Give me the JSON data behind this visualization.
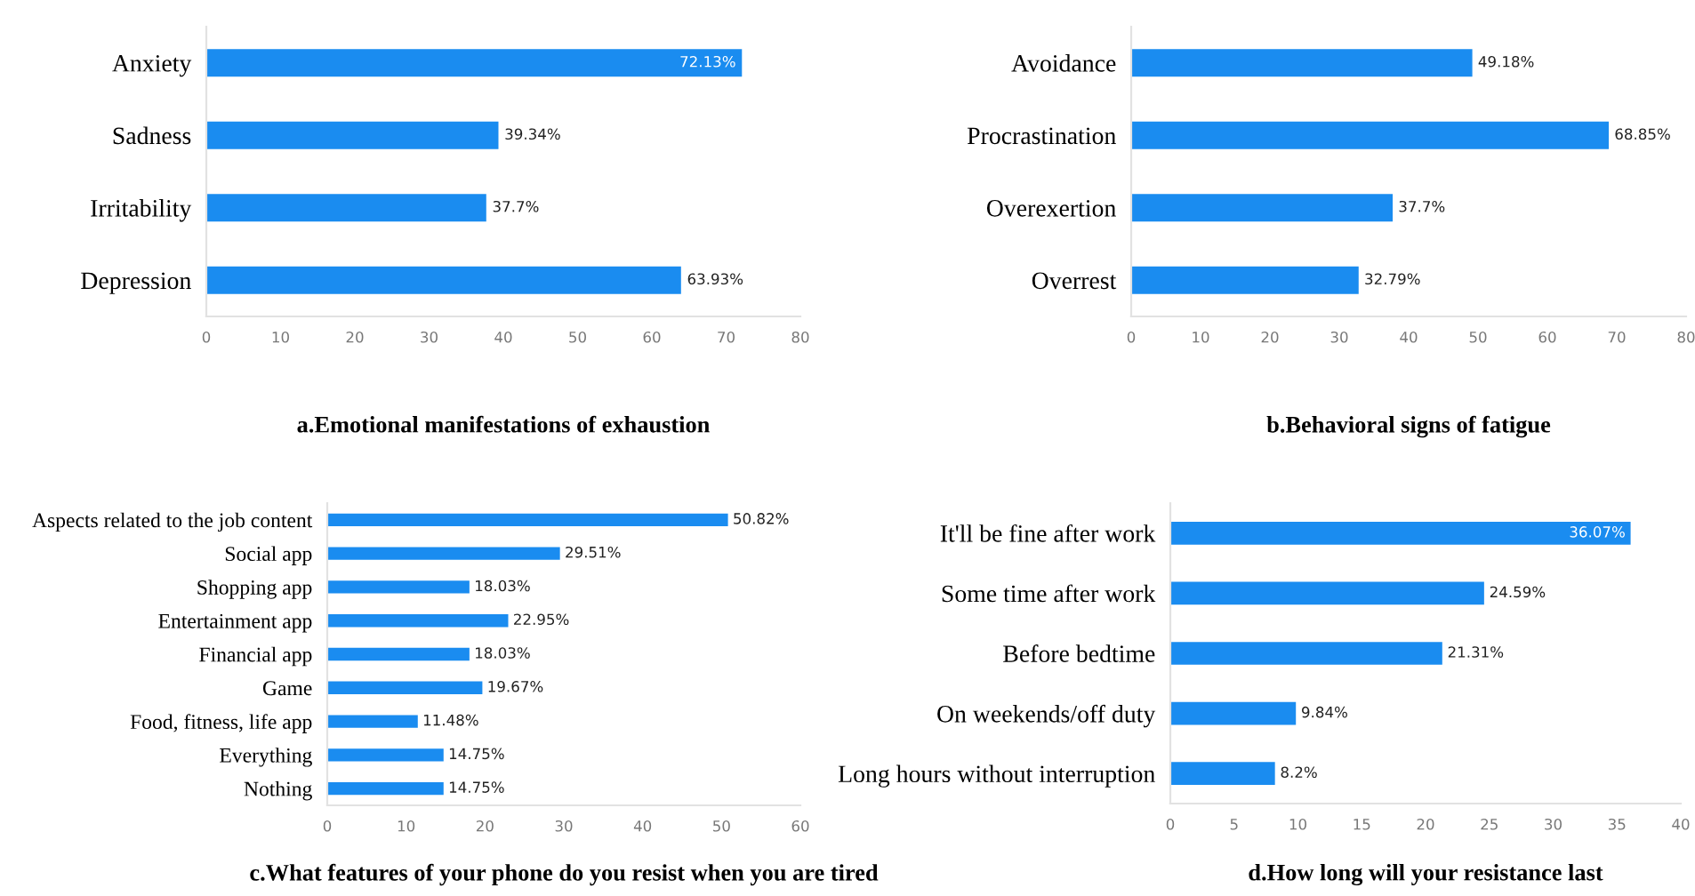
{
  "chart_data": [
    {
      "type": "bar",
      "orientation": "horizontal",
      "title": "a.Emotional manifestations of exhaustion",
      "categories": [
        "Anxiety",
        "Sadness",
        "Irritability",
        "Depression"
      ],
      "values": [
        72.13,
        39.34,
        37.7,
        63.93
      ],
      "value_labels": [
        "72.13%",
        "39.34%",
        "37.7%",
        "63.93%"
      ],
      "color": "#1a8cf0",
      "xlim": [
        0,
        80
      ],
      "xticks": [
        0,
        10,
        20,
        30,
        40,
        50,
        60,
        70,
        80
      ],
      "grid": false,
      "legend": false
    },
    {
      "type": "bar",
      "orientation": "horizontal",
      "title": "b.Behavioral signs of fatigue",
      "categories": [
        "Avoidance",
        "Procrastination",
        "Overexertion",
        "Overrest"
      ],
      "values": [
        49.18,
        68.85,
        37.7,
        32.79
      ],
      "value_labels": [
        "49.18%",
        "68.85%",
        "37.7%",
        "32.79%"
      ],
      "color": "#1a8cf0",
      "xlim": [
        0,
        80
      ],
      "xticks": [
        0,
        10,
        20,
        30,
        40,
        50,
        60,
        70,
        80
      ],
      "grid": false,
      "legend": false
    },
    {
      "type": "bar",
      "orientation": "horizontal",
      "title": "c.What features of your phone do you resist when you are tired",
      "categories": [
        "Aspects related to the job content",
        "Social app",
        "Shopping app",
        "Entertainment app",
        "Financial app",
        "Game",
        "Food, fitness, life app",
        "Everything",
        "Nothing"
      ],
      "values": [
        50.82,
        29.51,
        18.03,
        22.95,
        18.03,
        19.67,
        11.48,
        14.75,
        14.75
      ],
      "value_labels": [
        "50.82%",
        "29.51%",
        "18.03%",
        "22.95%",
        "18.03%",
        "19.67%",
        "11.48%",
        "14.75%",
        "14.75%"
      ],
      "color": "#1a8cf0",
      "xlim": [
        0,
        60
      ],
      "xticks": [
        0,
        10,
        20,
        30,
        40,
        50,
        60
      ],
      "grid": false,
      "legend": false
    },
    {
      "type": "bar",
      "orientation": "horizontal",
      "title": "d.How long will your resistance last",
      "categories": [
        "It'll be fine after work",
        "Some time after work",
        "Before bedtime",
        "On weekends/off duty",
        "Long hours without interruption"
      ],
      "values": [
        36.07,
        24.59,
        21.31,
        9.84,
        8.2
      ],
      "value_labels": [
        "36.07%",
        "24.59%",
        "21.31%",
        "9.84%",
        "8.2%"
      ],
      "color": "#1a8cf0",
      "xlim": [
        0,
        40
      ],
      "xticks": [
        0,
        5,
        10,
        15,
        20,
        25,
        30,
        35,
        40
      ],
      "grid": false,
      "legend": false
    }
  ]
}
